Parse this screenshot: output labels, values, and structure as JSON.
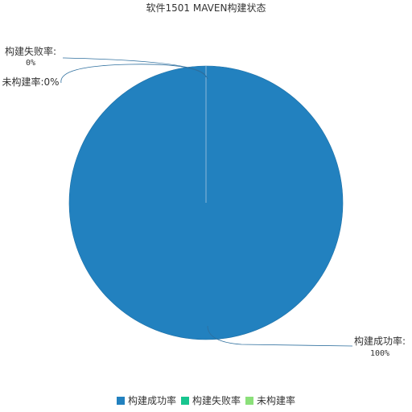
{
  "chart_data": {
    "type": "pie",
    "title": "软件1501 MAVEN构建状态",
    "series": [
      {
        "name": "构建成功率",
        "value": 100,
        "label": "100%",
        "color": "#2281bf"
      },
      {
        "name": "构建失败率",
        "value": 0,
        "label": "0%",
        "color": "#18c58f"
      },
      {
        "name": "未构建率",
        "value": 0,
        "label": "0%",
        "color": "#8be07a"
      }
    ],
    "legend_position": "bottom-center",
    "label_separator": ":"
  }
}
